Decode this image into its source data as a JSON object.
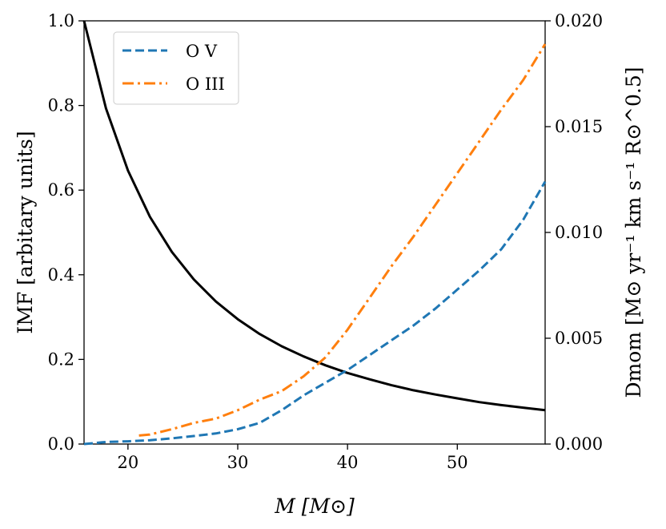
{
  "chart_data": {
    "type": "line",
    "xlabel": "M [M⊙]",
    "ylabel_left": "IMF [arbitary units]",
    "ylabel_right": "Dmom [M⊙ yr⁻¹ km s⁻¹ R⊙^0.5]",
    "xlim": [
      16,
      58
    ],
    "ylim_left": [
      0,
      1.0
    ],
    "ylim_right": [
      0,
      0.02
    ],
    "x_ticks": [
      20,
      30,
      40,
      50
    ],
    "y_ticks_left": [
      0.0,
      0.2,
      0.4,
      0.6,
      0.8,
      1.0
    ],
    "y_ticks_right": [
      0.0,
      0.005,
      0.01,
      0.015,
      0.02
    ],
    "x_tick_labels": [
      "20",
      "30",
      "40",
      "50"
    ],
    "y_tick_labels_left": [
      "0.0",
      "0.2",
      "0.4",
      "0.6",
      "0.8",
      "1.0"
    ],
    "y_tick_labels_right": [
      "0.000",
      "0.005",
      "0.010",
      "0.015",
      "0.020"
    ],
    "grid": false,
    "legend_position": "top-left",
    "series": [
      {
        "name": "",
        "axis": "left",
        "color": "#000000",
        "style": "solid",
        "x": [
          16,
          18,
          20,
          22,
          24,
          26,
          28,
          30,
          32,
          34,
          36,
          38,
          40,
          42,
          44,
          46,
          48,
          50,
          52,
          54,
          56,
          58
        ],
        "y": [
          1.0,
          0.793,
          0.646,
          0.537,
          0.454,
          0.389,
          0.337,
          0.295,
          0.26,
          0.231,
          0.207,
          0.186,
          0.168,
          0.153,
          0.139,
          0.127,
          0.117,
          0.108,
          0.099,
          0.092,
          0.086,
          0.08
        ]
      },
      {
        "name": "O V",
        "axis": "right",
        "color": "#1f77b4",
        "style": "dashed",
        "x": [
          16,
          18,
          20,
          22,
          24,
          26,
          28,
          30,
          32,
          34,
          36,
          38,
          40,
          42,
          44,
          46,
          48,
          50,
          52,
          54,
          56,
          58
        ],
        "y": [
          0.0,
          0.0001,
          0.00013,
          0.00018,
          0.00027,
          0.00038,
          0.0005,
          0.0007,
          0.001,
          0.0016,
          0.0023,
          0.0029,
          0.0035,
          0.0042,
          0.0049,
          0.0056,
          0.0064,
          0.0073,
          0.0082,
          0.0092,
          0.0106,
          0.0124
        ]
      },
      {
        "name": "O III",
        "axis": "right",
        "color": "#ff7f0e",
        "style": "dashdot",
        "x": [
          21,
          22,
          24,
          26,
          28,
          30,
          32,
          34,
          36,
          38,
          40,
          42,
          44,
          46,
          48,
          50,
          52,
          54,
          56,
          58
        ],
        "y": [
          0.0004,
          0.00045,
          0.0007,
          0.001,
          0.0012,
          0.0016,
          0.0021,
          0.0025,
          0.0032,
          0.0041,
          0.0054,
          0.0069,
          0.0084,
          0.0098,
          0.0113,
          0.0128,
          0.0143,
          0.0158,
          0.0172,
          0.0189
        ]
      }
    ]
  }
}
